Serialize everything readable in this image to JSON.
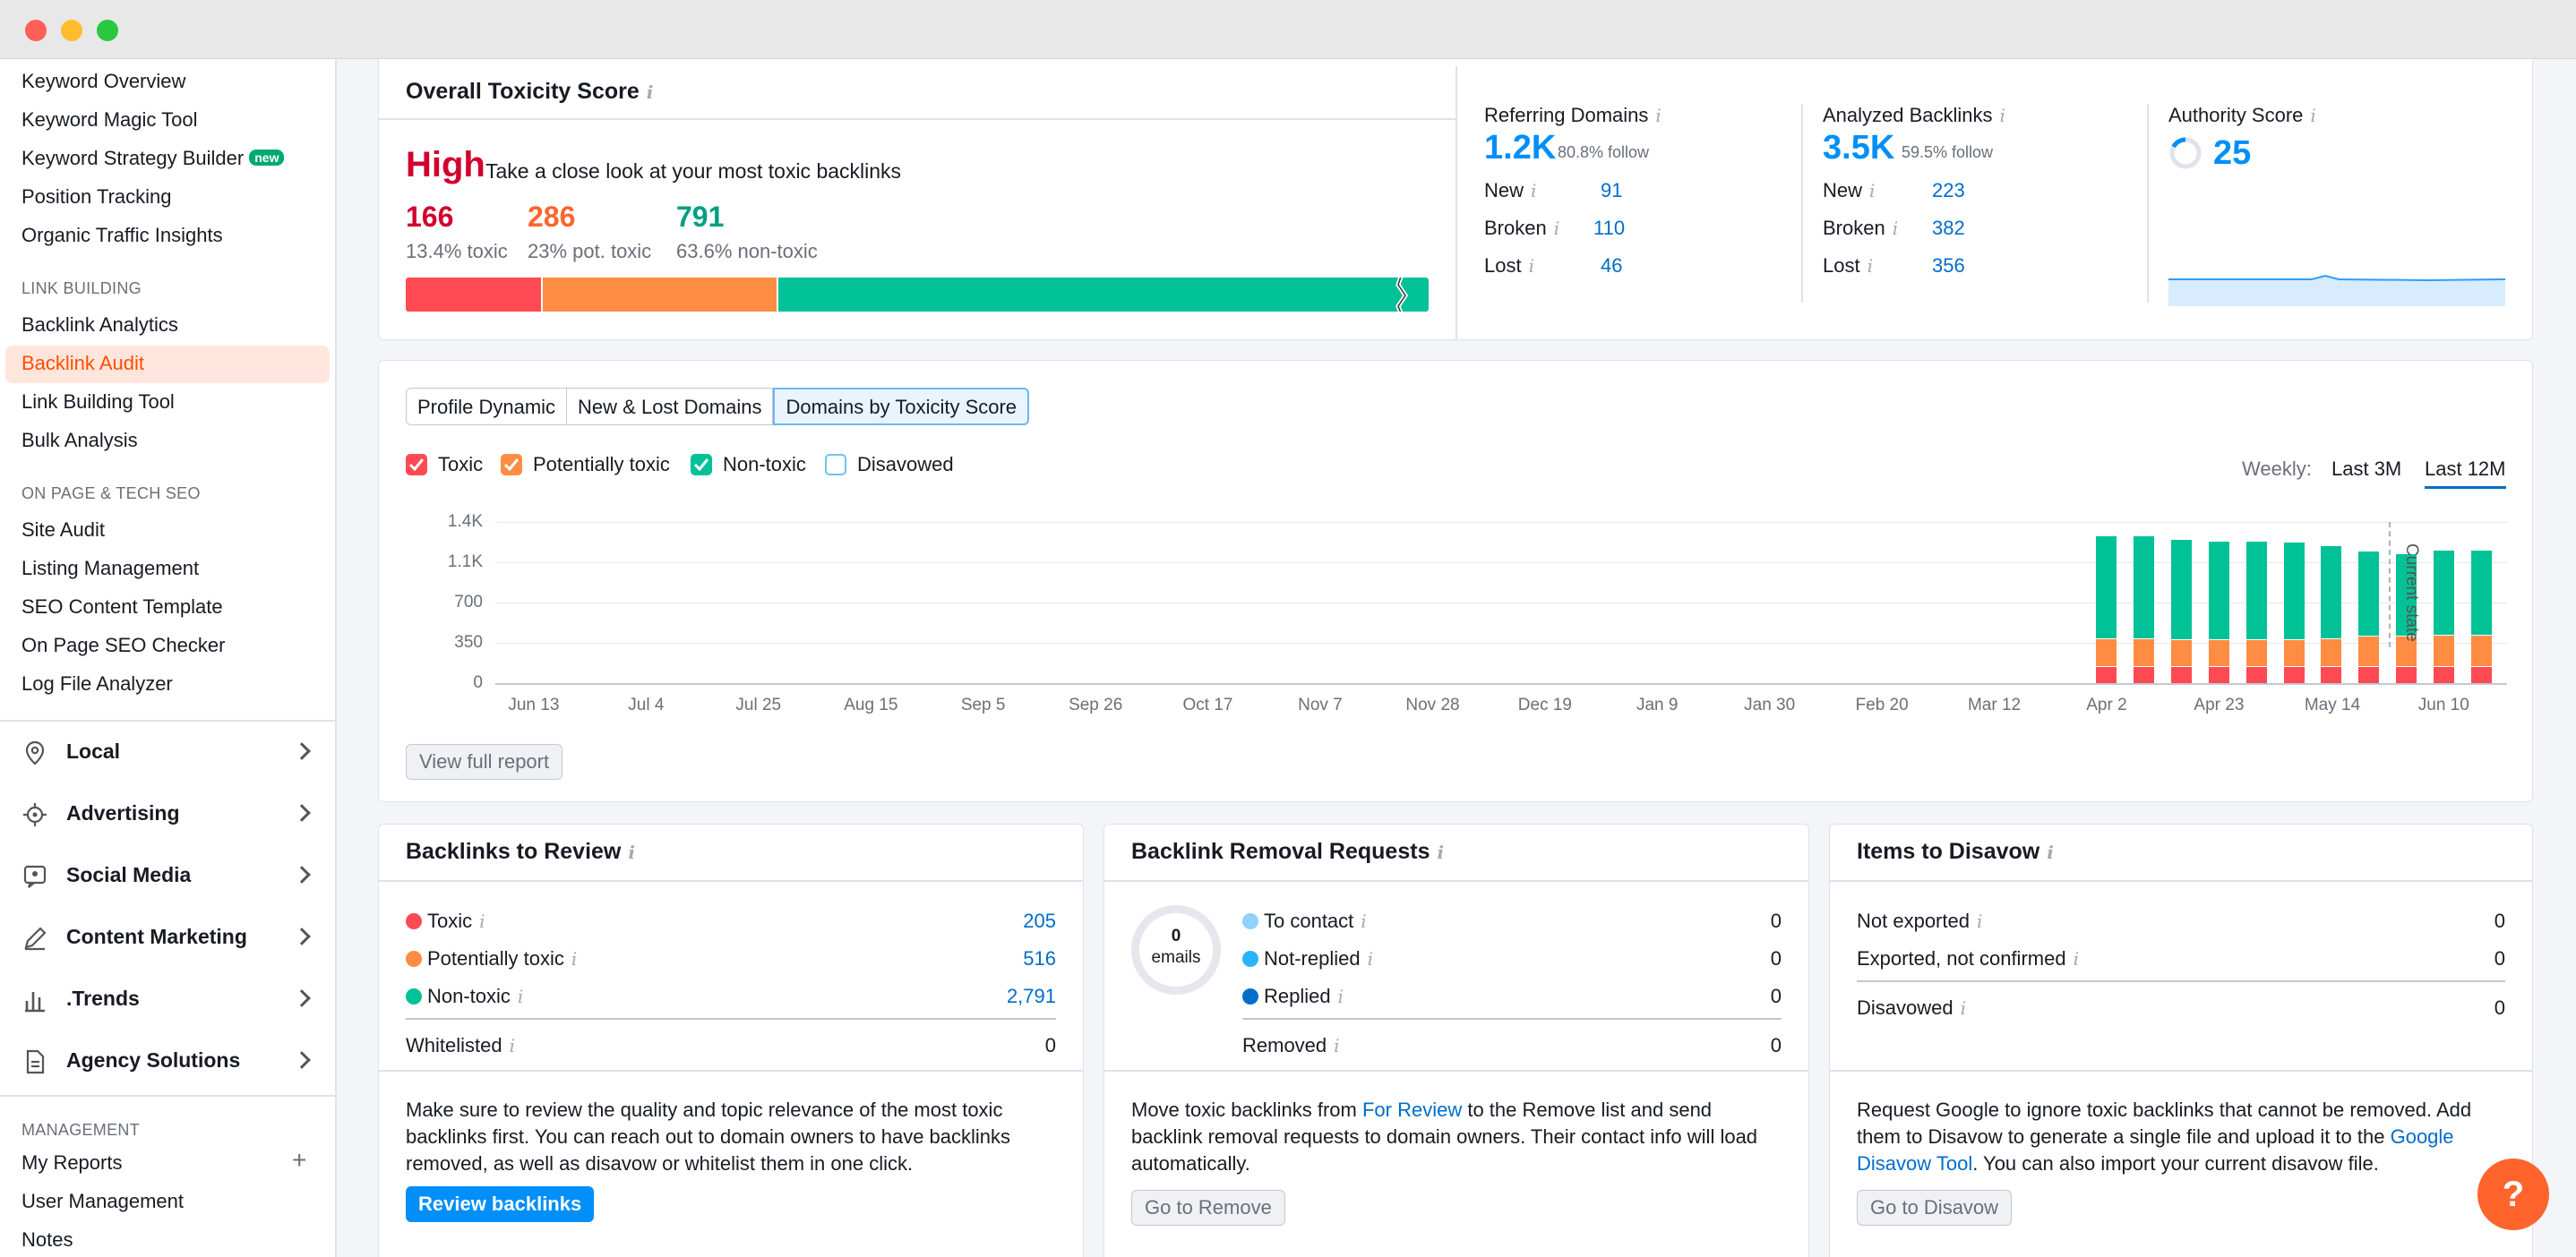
{
  "window": {
    "controls": [
      "close",
      "minimize",
      "maximize"
    ]
  },
  "sidebar": {
    "seo_items": [
      "Keyword Overview",
      "Keyword Magic Tool",
      "Keyword Strategy Builder",
      "Position Tracking",
      "Organic Traffic Insights"
    ],
    "new_badge": "new",
    "link_building_heading": "LINK BUILDING",
    "link_building_items": [
      "Backlink Analytics",
      "Backlink Audit",
      "Link Building Tool",
      "Bulk Analysis"
    ],
    "on_page_heading": "ON PAGE & TECH SEO",
    "on_page_items": [
      "Site Audit",
      "Listing Management",
      "SEO Content Template",
      "On Page SEO Checker",
      "Log File Analyzer"
    ],
    "groups": [
      {
        "label": "Local",
        "icon": "location-pin-icon"
      },
      {
        "label": "Advertising",
        "icon": "target-icon"
      },
      {
        "label": "Social Media",
        "icon": "chat-icon"
      },
      {
        "label": "Content Marketing",
        "icon": "pencil-icon"
      },
      {
        "label": ".Trends",
        "icon": "bar-chart-icon"
      },
      {
        "label": "Agency Solutions",
        "icon": "document-icon"
      }
    ],
    "management_heading": "MANAGEMENT",
    "management_items": [
      "My Reports",
      "User Management",
      "Notes"
    ],
    "add_symbol": "+"
  },
  "toxicity": {
    "title": "Overall Toxicity Score",
    "level": "High",
    "level_desc": "Take a close look at your most toxic backlinks",
    "toxic_count": "166",
    "toxic_label": "13.4% toxic",
    "pot_count": "286",
    "pot_label": "23% pot. toxic",
    "non_count": "791",
    "non_label": "63.6% non-toxic",
    "shares": [
      13.4,
      23,
      63.6
    ],
    "colors": {
      "toxic": "#ff4953",
      "potential": "#ff8c43",
      "non": "#00c296"
    }
  },
  "referring": {
    "title": "Referring Domains",
    "value": "1.2K",
    "follow": "80.8% follow",
    "rows": [
      {
        "label": "New",
        "value": "91"
      },
      {
        "label": "Broken",
        "value": "110"
      },
      {
        "label": "Lost",
        "value": "46"
      }
    ]
  },
  "analyzed": {
    "title": "Analyzed Backlinks",
    "value": "3.5K",
    "follow": "59.5% follow",
    "rows": [
      {
        "label": "New",
        "value": "223"
      },
      {
        "label": "Broken",
        "value": "382"
      },
      {
        "label": "Lost",
        "value": "356"
      }
    ]
  },
  "authority": {
    "title": "Authority Score",
    "value": "25"
  },
  "chart_section": {
    "tabs": [
      "Profile Dynamic",
      "New & Lost Domains",
      "Domains by Toxicity Score"
    ],
    "active_tab": 2,
    "legend": [
      {
        "label": "Toxic",
        "checked": true,
        "color": "#ff4953"
      },
      {
        "label": "Potentially toxic",
        "checked": true,
        "color": "#ff8c43"
      },
      {
        "label": "Non-toxic",
        "checked": true,
        "color": "#00c296"
      },
      {
        "label": "Disavowed",
        "checked": false,
        "color": "#6ec5e8"
      }
    ],
    "weekly_label": "Weekly:",
    "ranges": [
      "Last 3M",
      "Last 12M"
    ],
    "active_range": 1,
    "current_state_label": "Current state",
    "view_full_report": "View full report"
  },
  "chart_data": {
    "type": "bar",
    "stacked": true,
    "y_ticks": [
      "1.4K",
      "1.1K",
      "700",
      "350",
      "0"
    ],
    "ylim": [
      0,
      1400
    ],
    "x_ticks": [
      "Jun 13",
      "Jul 4",
      "Jul 25",
      "Aug 15",
      "Sep 5",
      "Sep 26",
      "Oct 17",
      "Nov 7",
      "Nov 28",
      "Dec 19",
      "Jan 9",
      "Jan 30",
      "Feb 20",
      "Mar 12",
      "Apr 2",
      "Apr 23",
      "May 14",
      "Jun 10"
    ],
    "bars_start_week": 42,
    "total_weeks": 53,
    "series": [
      {
        "name": "Toxic",
        "color": "#ff4953",
        "values": [
          150,
          150,
          150,
          150,
          150,
          150,
          150,
          150,
          150,
          150,
          150
        ]
      },
      {
        "name": "Potentially toxic",
        "color": "#ff8c43",
        "values": [
          240,
          240,
          230,
          230,
          230,
          230,
          240,
          260,
          260,
          270,
          270
        ]
      },
      {
        "name": "Non-toxic",
        "color": "#00c296",
        "values": [
          890,
          890,
          870,
          860,
          860,
          850,
          810,
          740,
          720,
          740,
          740
        ]
      }
    ]
  },
  "review": {
    "title": "Backlinks to Review",
    "rows": [
      {
        "label": "Toxic",
        "value": "205",
        "color": "#ff4953"
      },
      {
        "label": "Potentially toxic",
        "value": "516",
        "color": "#ff8c43"
      },
      {
        "label": "Non-toxic",
        "value": "2,791",
        "color": "#00c296"
      }
    ],
    "whitelisted_label": "Whitelisted",
    "whitelisted_value": "0",
    "desc": "Make sure to review the quality and topic relevance of the most toxic backlinks first. You can reach out to domain owners to have backlinks removed, as well as disavow or whitelist them in one click.",
    "button": "Review backlinks"
  },
  "removal": {
    "title": "Backlink Removal Requests",
    "donut_value": "0",
    "donut_label": "emails",
    "rows": [
      {
        "label": "To contact",
        "value": "0",
        "color": "#8fd1ff"
      },
      {
        "label": "Not-replied",
        "value": "0",
        "color": "#2bb3ff"
      },
      {
        "label": "Replied",
        "value": "0",
        "color": "#006dca"
      }
    ],
    "removed_label": "Removed",
    "removed_value": "0",
    "desc_pre": "Move toxic backlinks from ",
    "desc_link": "For Review",
    "desc_post": " to the Remove list and send backlink removal requests to domain owners. Their contact info will load automatically.",
    "button": "Go to Remove"
  },
  "disavow": {
    "title": "Items to Disavow",
    "rows": [
      {
        "label": "Not exported",
        "value": "0"
      },
      {
        "label": "Exported, not confirmed",
        "value": "0"
      }
    ],
    "disavowed_label": "Disavowed",
    "disavowed_value": "0",
    "desc_pre": "Request Google to ignore toxic backlinks that cannot be removed. Add them to Disavow to generate a single file and upload it to the ",
    "desc_link": "Google Disavow Tool",
    "desc_post": ". You can also import your current disavow file.",
    "button": "Go to Disavow"
  },
  "help_button": "?"
}
